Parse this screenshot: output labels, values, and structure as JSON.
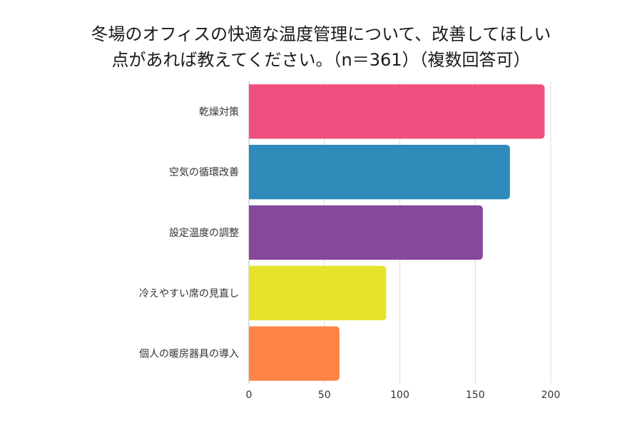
{
  "title_line1": "冬場のオフィスの快適な温度管理について、改善してほしい",
  "title_line2": "点があれば教えてください。（n＝361）（複数回答可）",
  "chart_data": {
    "type": "bar",
    "orientation": "horizontal",
    "categories": [
      "乾燥対策",
      "空気の循環改善",
      "設定温度の調整",
      "冷えやすい席の見直し",
      "個人の暖房器具の導入"
    ],
    "values": [
      196,
      173,
      155,
      91,
      60
    ],
    "colors": [
      "#ef4f7e",
      "#2e8bba",
      "#85489b",
      "#e6e32b",
      "#fe8446"
    ],
    "xlim": [
      0,
      200
    ],
    "xticks": [
      0,
      50,
      100,
      150,
      200
    ],
    "grid": true
  }
}
